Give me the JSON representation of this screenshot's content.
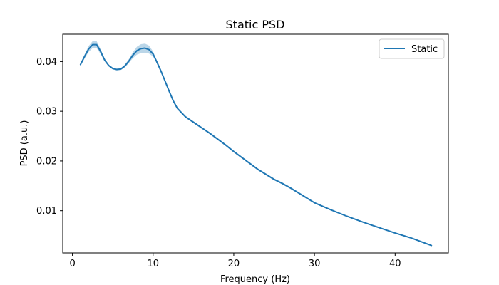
{
  "chart_data": {
    "type": "line",
    "title": "Static PSD",
    "xlabel": "Frequency (Hz)",
    "ylabel": "PSD (a.u.)",
    "xlim": [
      -1.2,
      46.6
    ],
    "ylim": [
      0.0015,
      0.0455
    ],
    "xticks": [
      0,
      10,
      20,
      30,
      40
    ],
    "xtick_labels": [
      "0",
      "10",
      "20",
      "30",
      "40"
    ],
    "yticks": [
      0.01,
      0.02,
      0.03,
      0.04
    ],
    "ytick_labels": [
      "0.01",
      "0.02",
      "0.03",
      "0.04"
    ],
    "grid": false,
    "legend": {
      "position": "top-right"
    },
    "series": [
      {
        "name": "Static",
        "color": "#1f77b4",
        "band_color": "#1f77b4",
        "x": [
          1,
          1.5,
          2,
          2.5,
          3,
          3.5,
          4,
          4.5,
          5,
          5.5,
          6,
          6.5,
          7,
          7.5,
          8,
          8.5,
          9,
          9.5,
          10,
          10.5,
          11,
          11.5,
          12,
          12.5,
          13,
          14,
          15,
          16,
          17,
          18,
          19,
          20,
          21,
          22,
          23,
          24,
          25,
          26,
          27,
          28,
          29,
          30,
          32,
          34,
          36,
          38,
          40,
          42,
          44.5
        ],
        "values": [
          0.0394,
          0.041,
          0.0425,
          0.0434,
          0.0434,
          0.042,
          0.0403,
          0.0392,
          0.0386,
          0.0384,
          0.0385,
          0.0391,
          0.0401,
          0.0413,
          0.0422,
          0.0426,
          0.0427,
          0.0424,
          0.0415,
          0.0398,
          0.038,
          0.036,
          0.034,
          0.0321,
          0.0306,
          0.0289,
          0.0278,
          0.0267,
          0.0256,
          0.0244,
          0.0232,
          0.0219,
          0.0207,
          0.0195,
          0.0183,
          0.0173,
          0.0163,
          0.0155,
          0.0146,
          0.0136,
          0.0126,
          0.0116,
          0.0102,
          0.0089,
          0.0077,
          0.0066,
          0.0055,
          0.0045,
          0.003
        ],
        "upper": [
          0.0397,
          0.0414,
          0.0431,
          0.0441,
          0.0441,
          0.0425,
          0.0406,
          0.0394,
          0.0388,
          0.0386,
          0.0387,
          0.0394,
          0.0405,
          0.0419,
          0.043,
          0.0435,
          0.0436,
          0.0432,
          0.042,
          0.0401,
          0.0382,
          0.0362,
          0.0342,
          0.0323,
          0.0308,
          0.0291,
          0.028,
          0.0269,
          0.0258,
          0.0246,
          0.0234,
          0.0221,
          0.0209,
          0.0197,
          0.0185,
          0.0175,
          0.0165,
          0.0157,
          0.0148,
          0.0138,
          0.0128,
          0.0117,
          0.0103,
          0.009,
          0.0078,
          0.0067,
          0.0056,
          0.0046,
          0.0031
        ],
        "lower": [
          0.0391,
          0.0406,
          0.0419,
          0.0427,
          0.0427,
          0.0415,
          0.04,
          0.039,
          0.0384,
          0.0382,
          0.0383,
          0.0388,
          0.0397,
          0.0407,
          0.0414,
          0.0417,
          0.0418,
          0.0416,
          0.041,
          0.0395,
          0.0378,
          0.0358,
          0.0338,
          0.0319,
          0.0304,
          0.0287,
          0.0276,
          0.0265,
          0.0254,
          0.0242,
          0.023,
          0.0217,
          0.0205,
          0.0193,
          0.0181,
          0.0171,
          0.0161,
          0.0153,
          0.0144,
          0.0134,
          0.0124,
          0.0115,
          0.0101,
          0.0088,
          0.0076,
          0.0065,
          0.0054,
          0.0044,
          0.0029
        ]
      }
    ]
  }
}
